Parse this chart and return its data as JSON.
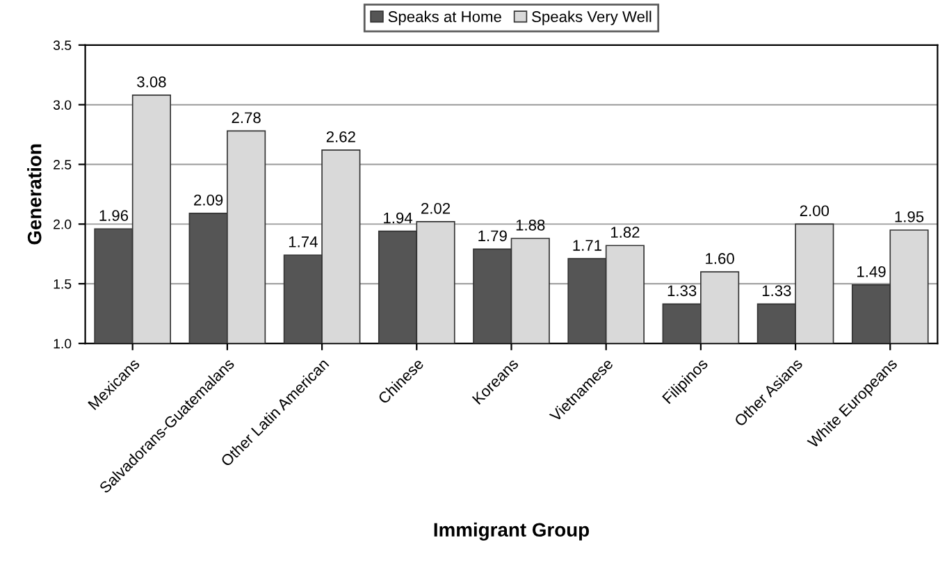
{
  "chart_data": {
    "type": "bar",
    "xlabel": "Immigrant Group",
    "ylabel": "Generation",
    "categories": [
      "Mexicans",
      "Salvadorans-Guatemalans",
      "Other Latin American",
      "Chinese",
      "Koreans",
      "Vietnamese",
      "Filipinos",
      "Other Asians",
      "White Europeans"
    ],
    "series": [
      {
        "name": "Speaks at Home",
        "color": "#555555",
        "values": [
          1.96,
          2.09,
          1.74,
          1.94,
          1.79,
          1.71,
          1.33,
          1.33,
          1.49
        ],
        "value_labels": [
          "1.96",
          "2.09",
          "1.74",
          "1.94",
          "1.79",
          "1.71",
          "1.33",
          "1.33",
          "1.49"
        ]
      },
      {
        "name": "Speaks Very Well",
        "color": "#d9d9d9",
        "values": [
          3.08,
          2.78,
          2.62,
          2.02,
          1.88,
          1.82,
          1.6,
          2.0,
          1.95
        ],
        "value_labels": [
          "3.08",
          "2.78",
          "2.62",
          "2.02",
          "1.88",
          "1.82",
          "1.60",
          "2.00",
          "1.95"
        ]
      }
    ],
    "ylim": [
      1.0,
      3.5
    ],
    "yticks": [
      {
        "value": 1.0,
        "label": "1.0"
      },
      {
        "value": 1.5,
        "label": "1.5"
      },
      {
        "value": 2.0,
        "label": "2.0"
      },
      {
        "value": 2.5,
        "label": "2.5"
      },
      {
        "value": 3.0,
        "label": "3.0"
      },
      {
        "value": 3.5,
        "label": "3.5"
      }
    ],
    "grid": "y",
    "legend": "top"
  }
}
